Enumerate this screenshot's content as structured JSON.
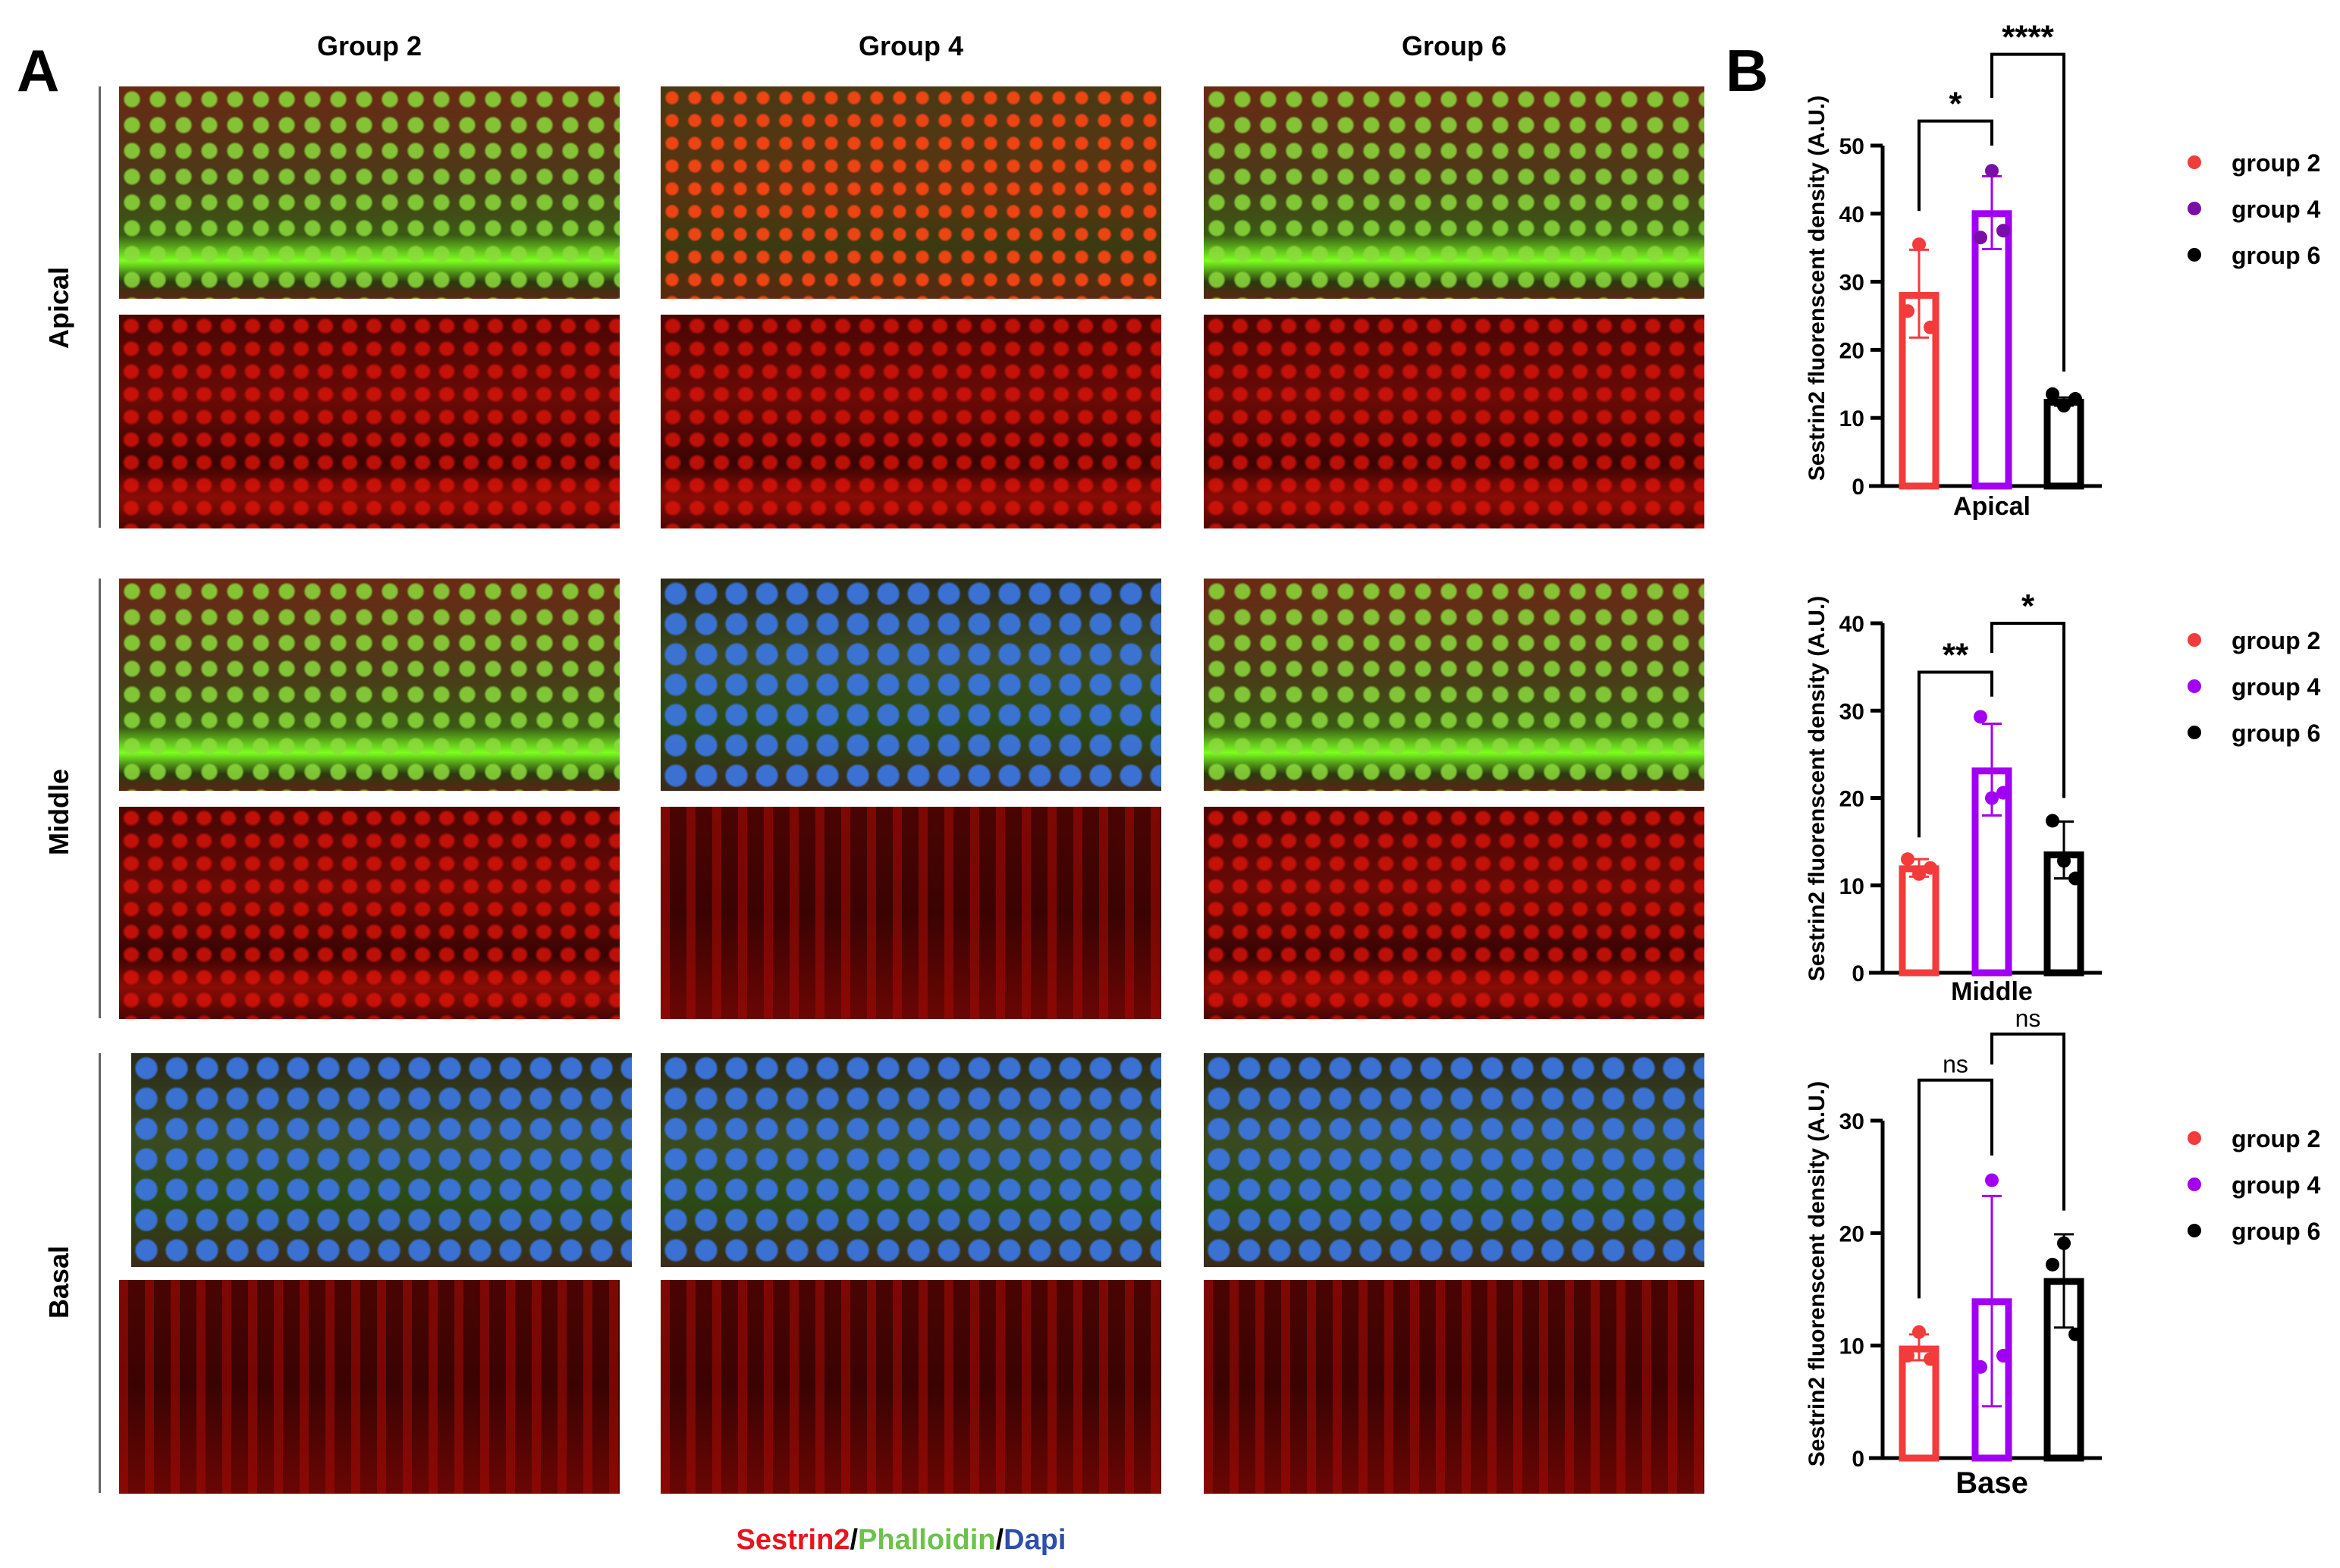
{
  "panel_a": {
    "letter": "A",
    "columns": [
      "Group 2",
      "Group 4",
      "Group 6"
    ],
    "rows": [
      "Apical",
      "Middle",
      "Basal"
    ],
    "caption": {
      "part1": "Sestrin2",
      "sep1": "/",
      "part2": "Phalloidin",
      "sep2": "/",
      "part3": "Dapi"
    },
    "caption_colors": {
      "sestrin2": "#e8141e",
      "phalloidin": "#6cc24a",
      "dapi": "#2e4fa8"
    }
  },
  "panel_b": {
    "letter": "B"
  },
  "chart_data": [
    {
      "type": "bar",
      "xlabel": "Apical",
      "ylabel": "Sestrin2 fluorenscent density (A.U.)",
      "ylim": [
        0,
        50
      ],
      "yticks": [
        0,
        10,
        20,
        30,
        40,
        50
      ],
      "grid": false,
      "legend_placement": "right",
      "series": [
        {
          "name": "group 2",
          "color": "#f23b3b",
          "point_color": "#f23b3b",
          "mean": 28,
          "err": [
            21.8,
            34.7
          ],
          "points": [
            35.5,
            25.7,
            23.3
          ]
        },
        {
          "name": "group 4",
          "color": "#a100f2",
          "point_color": "#7a0fa8",
          "mean": 40,
          "err": [
            34.8,
            45.5
          ],
          "points": [
            46.3,
            36.5,
            37.5
          ]
        },
        {
          "name": "group 6",
          "color": "#000000",
          "point_color": "#000000",
          "mean": 12.3,
          "err": [
            11.8,
            13.0
          ],
          "points": [
            11.8,
            13.5,
            12.8
          ]
        }
      ],
      "comparisons": [
        {
          "from": 0,
          "to": 1,
          "label": "*",
          "y": 53.6,
          "left_end": 40.4,
          "right_end": 50
        },
        {
          "from": 1,
          "to": 2,
          "label": "****",
          "y": 63.4,
          "left_end": 57,
          "right_end": 16.8
        }
      ]
    },
    {
      "type": "bar",
      "xlabel": "Middle",
      "ylabel": "Sestrin2 fluorenscent density (A.U.)",
      "ylim": [
        0,
        40
      ],
      "yticks": [
        0,
        10,
        20,
        30,
        40
      ],
      "grid": false,
      "legend_placement": "right",
      "series": [
        {
          "name": "group 2",
          "color": "#f23b3b",
          "point_color": "#f23b3b",
          "mean": 11.9,
          "err": [
            11.0,
            13.0
          ],
          "points": [
            13.0,
            11.3,
            12.0
          ]
        },
        {
          "name": "group 4",
          "color": "#a100f2",
          "point_color": "#a100f2",
          "mean": 23.1,
          "err": [
            18.0,
            28.5
          ],
          "points": [
            29.3,
            20.0,
            20.6
          ]
        },
        {
          "name": "group 6",
          "color": "#000000",
          "point_color": "#000000",
          "mean": 13.5,
          "err": [
            10.8,
            17.3
          ],
          "points": [
            17.4,
            12.8,
            10.8
          ]
        }
      ],
      "comparisons": [
        {
          "from": 0,
          "to": 1,
          "label": "**",
          "y": 34.4,
          "left_end": 15.5,
          "right_end": 31.6
        },
        {
          "from": 1,
          "to": 2,
          "label": "*",
          "y": 40,
          "left_end": 36.6,
          "right_end": 20
        }
      ]
    },
    {
      "type": "bar",
      "xlabel": "Base",
      "ylabel": "Sestrin2 fluorenscent density (A.U.)",
      "ylim": [
        0,
        30
      ],
      "yticks": [
        0,
        10,
        20,
        30
      ],
      "grid": false,
      "legend_placement": "right",
      "series": [
        {
          "name": "group 2",
          "color": "#f23b3b",
          "point_color": "#f23b3b",
          "mean": 9.7,
          "err": [
            8.7,
            11.0
          ],
          "points": [
            11.2,
            9.1,
            8.8
          ]
        },
        {
          "name": "group 4",
          "color": "#a100f2",
          "point_color": "#a100f2",
          "mean": 13.9,
          "err": [
            4.6,
            23.3
          ],
          "points": [
            24.7,
            8.1,
            9.1
          ]
        },
        {
          "name": "group 6",
          "color": "#000000",
          "point_color": "#000000",
          "mean": 15.7,
          "err": [
            11.6,
            19.9
          ],
          "points": [
            19.1,
            17.2,
            11.0
          ]
        }
      ],
      "comparisons": [
        {
          "from": 0,
          "to": 1,
          "label": "ns",
          "y": 33.6,
          "left_end": 14.2,
          "right_end": 26.9
        },
        {
          "from": 1,
          "to": 2,
          "label": "ns",
          "y": 37.7,
          "left_end": 35,
          "right_end": 22
        }
      ]
    }
  ]
}
